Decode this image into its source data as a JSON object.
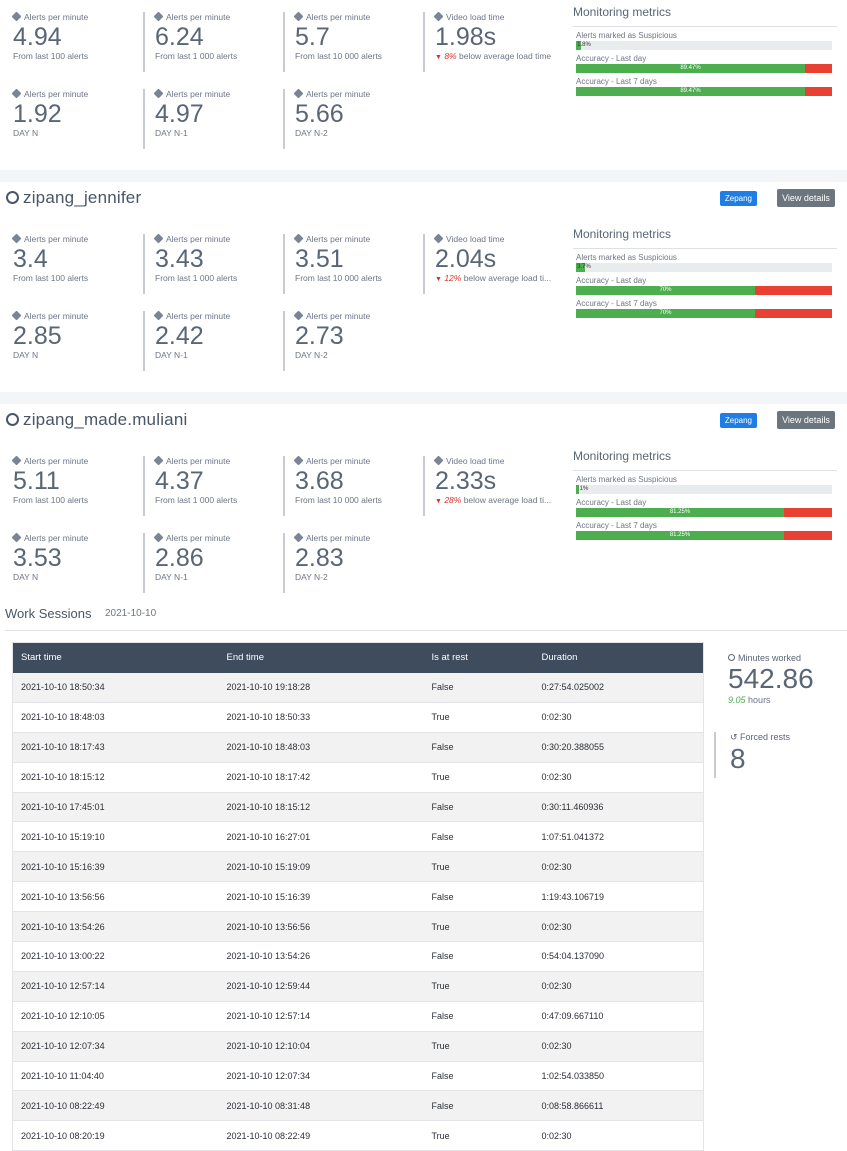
{
  "colors": {
    "header": "#3e4c5e",
    "ok": "#4cae4f",
    "bad": "#e84133",
    "badge": "#1e7ee6",
    "details": "#6c757d"
  },
  "cards": [
    {
      "title": "",
      "top_stats": [
        {
          "label": "Alerts per minute",
          "value": "4.94",
          "sub": "From last 100 alerts"
        },
        {
          "label": "Alerts per minute",
          "value": "6.24",
          "sub": "From last 1 000 alerts"
        },
        {
          "label": "Alerts per minute",
          "value": "5.7",
          "sub": "From last 10 000 alerts"
        },
        {
          "label": "Video load time",
          "value": "1.98s",
          "pct": "8%",
          "sub": "below average load time"
        }
      ],
      "day_stats": [
        {
          "label": "Alerts per minute",
          "value": "1.92",
          "sub": "DAY N"
        },
        {
          "label": "Alerts per minute",
          "value": "4.97",
          "sub": "DAY N-1"
        },
        {
          "label": "Alerts per minute",
          "value": "5.66",
          "sub": "DAY N-2"
        }
      ],
      "monitoring": {
        "title": "Monitoring metrics",
        "rows": [
          {
            "label": "Alerts marked as Suspicious",
            "ok": 0.018,
            "text": "1.8%"
          },
          {
            "label": "Accuracy - Last day",
            "ok": 0.8947,
            "text": "89.47%"
          },
          {
            "label": "Accuracy - Last 7 days",
            "ok": 0.8947,
            "text": "89.47%"
          }
        ]
      }
    },
    {
      "title": "zipang_jennifer",
      "badge": "Zepang",
      "details": "View details",
      "top_stats": [
        {
          "label": "Alerts per minute",
          "value": "3.4",
          "sub": "From last 100 alerts"
        },
        {
          "label": "Alerts per minute",
          "value": "3.43",
          "sub": "From last 1 000 alerts"
        },
        {
          "label": "Alerts per minute",
          "value": "3.51",
          "sub": "From last 10 000 alerts"
        },
        {
          "label": "Video load time",
          "value": "2.04s",
          "pct": "12%",
          "sub": "below average load ti..."
        }
      ],
      "day_stats": [
        {
          "label": "Alerts per minute",
          "value": "2.85",
          "sub": "DAY N"
        },
        {
          "label": "Alerts per minute",
          "value": "2.42",
          "sub": "DAY N-1"
        },
        {
          "label": "Alerts per minute",
          "value": "2.73",
          "sub": "DAY N-2"
        }
      ],
      "monitoring": {
        "title": "Monitoring metrics",
        "rows": [
          {
            "label": "Alerts marked as Suspicious",
            "ok": 0.037,
            "text": "3.7%"
          },
          {
            "label": "Accuracy - Last day",
            "ok": 0.7,
            "text": "70%"
          },
          {
            "label": "Accuracy - Last 7 days",
            "ok": 0.7,
            "text": "70%"
          }
        ]
      }
    },
    {
      "title": "zipang_made.muliani",
      "badge": "Zepang",
      "details": "View details",
      "top_stats": [
        {
          "label": "Alerts per minute",
          "value": "5.11",
          "sub": "From last 100 alerts"
        },
        {
          "label": "Alerts per minute",
          "value": "4.37",
          "sub": "From last 1 000 alerts"
        },
        {
          "label": "Alerts per minute",
          "value": "3.68",
          "sub": "From last 10 000 alerts"
        },
        {
          "label": "Video load time",
          "value": "2.33s",
          "pct": "28%",
          "sub": "below average load ti..."
        }
      ],
      "day_stats": [
        {
          "label": "Alerts per minute",
          "value": "3.53",
          "sub": "DAY N"
        },
        {
          "label": "Alerts per minute",
          "value": "2.86",
          "sub": "DAY N-1"
        },
        {
          "label": "Alerts per minute",
          "value": "2.83",
          "sub": "DAY N-2"
        }
      ],
      "monitoring": {
        "title": "Monitoring metrics",
        "rows": [
          {
            "label": "Alerts marked as Suspicious",
            "ok": 0.01,
            "text": "1%"
          },
          {
            "label": "Accuracy - Last day",
            "ok": 0.8125,
            "text": "81.25%"
          },
          {
            "label": "Accuracy - Last 7 days",
            "ok": 0.8125,
            "text": "81.25%"
          }
        ]
      }
    }
  ],
  "work_sessions": {
    "title": "Work Sessions",
    "date": "2021-10-10",
    "columns": [
      "Start time",
      "End time",
      "Is at rest",
      "Duration"
    ],
    "rows": [
      [
        "2021-10-10 18:50:34",
        "2021-10-10 19:18:28",
        "False",
        "0:27:54.025002"
      ],
      [
        "2021-10-10 18:48:03",
        "2021-10-10 18:50:33",
        "True",
        "0:02:30"
      ],
      [
        "2021-10-10 18:17:43",
        "2021-10-10 18:48:03",
        "False",
        "0:30:20.388055"
      ],
      [
        "2021-10-10 18:15:12",
        "2021-10-10 18:17:42",
        "True",
        "0:02:30"
      ],
      [
        "2021-10-10 17:45:01",
        "2021-10-10 18:15:12",
        "False",
        "0:30:11.460936"
      ],
      [
        "2021-10-10 15:19:10",
        "2021-10-10 16:27:01",
        "False",
        "1:07:51.041372"
      ],
      [
        "2021-10-10 15:16:39",
        "2021-10-10 15:19:09",
        "True",
        "0:02:30"
      ],
      [
        "2021-10-10 13:56:56",
        "2021-10-10 15:16:39",
        "False",
        "1:19:43.106719"
      ],
      [
        "2021-10-10 13:54:26",
        "2021-10-10 13:56:56",
        "True",
        "0:02:30"
      ],
      [
        "2021-10-10 13:00:22",
        "2021-10-10 13:54:26",
        "False",
        "0:54:04.137090"
      ],
      [
        "2021-10-10 12:57:14",
        "2021-10-10 12:59:44",
        "True",
        "0:02:30"
      ],
      [
        "2021-10-10 12:10:05",
        "2021-10-10 12:57:14",
        "False",
        "0:47:09.667110"
      ],
      [
        "2021-10-10 12:07:34",
        "2021-10-10 12:10:04",
        "True",
        "0:02:30"
      ],
      [
        "2021-10-10 11:04:40",
        "2021-10-10 12:07:34",
        "False",
        "1:02:54.033850"
      ],
      [
        "2021-10-10 08:22:49",
        "2021-10-10 08:31:48",
        "False",
        "0:08:58.866611"
      ],
      [
        "2021-10-10 08:20:19",
        "2021-10-10 08:22:49",
        "True",
        "0:02:30"
      ]
    ]
  },
  "summary": {
    "minutes_label": "Minutes worked",
    "minutes_value": "542.86",
    "hours_value": "9.05",
    "hours_unit": "hours",
    "rests_label": "Forced rests",
    "rests_value": "8"
  }
}
